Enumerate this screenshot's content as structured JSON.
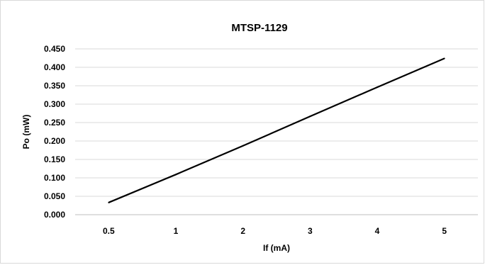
{
  "chart_data": {
    "type": "line",
    "title": "MTSP-1129",
    "xlabel": "If (mA)",
    "ylabel": "Po (mW)",
    "categories": [
      "0.5",
      "1",
      "2",
      "3",
      "4",
      "5"
    ],
    "series": [
      {
        "values": [
          0.033,
          0.109,
          0.187,
          0.267,
          0.346,
          0.424
        ]
      }
    ],
    "ylim": [
      0,
      0.45
    ],
    "yticks": [
      "0.000",
      "0.050",
      "0.100",
      "0.150",
      "0.200",
      "0.250",
      "0.300",
      "0.350",
      "0.400",
      "0.450"
    ],
    "grid": true,
    "legend": "none",
    "colors": {
      "line": "#000000",
      "grid": "#d9d9d9"
    }
  }
}
